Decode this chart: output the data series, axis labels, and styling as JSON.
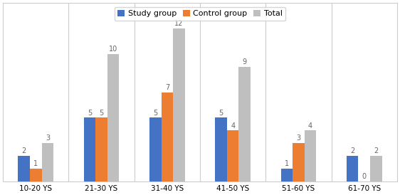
{
  "categories": [
    "10-20 YS",
    "21-30 YS",
    "31-40 YS",
    "41-50 YS",
    "51-60 YS",
    "61-70 YS"
  ],
  "study_group": [
    2,
    5,
    5,
    5,
    1,
    2
  ],
  "control_group": [
    1,
    5,
    7,
    4,
    3,
    0
  ],
  "total": [
    3,
    10,
    12,
    9,
    4,
    2
  ],
  "study_color": "#4472C4",
  "control_color": "#ED7D31",
  "total_color": "#BFBFBF",
  "legend_labels": [
    "Study group",
    "Control group",
    "Total"
  ],
  "bar_width": 0.18,
  "ylim": [
    0,
    14
  ],
  "figsize": [
    5.62,
    2.74
  ],
  "dpi": 100,
  "background_color": "#FFFFFF",
  "border_color": "#CCCCCC",
  "label_fontsize": 7,
  "tick_fontsize": 7.5,
  "legend_fontsize": 8
}
